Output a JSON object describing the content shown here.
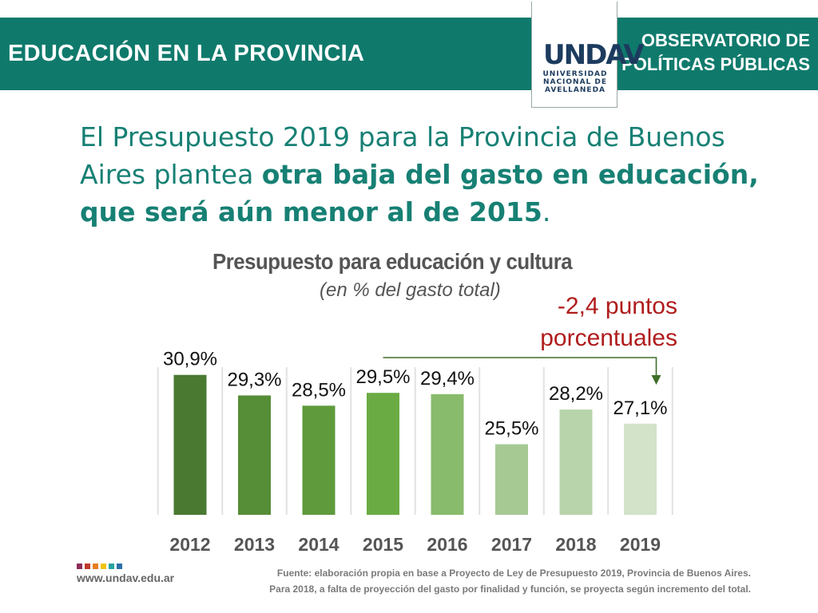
{
  "header": {
    "section_title": "EDUCACIÓN EN LA PROVINCIA",
    "org_line1": "OBSERVATORIO DE",
    "org_line2": "POLÍTICAS PÚBLICAS",
    "logo_mark": "UNDAV",
    "logo_sub1": "UNIVERSIDAD",
    "logo_sub2": "NACIONAL DE",
    "logo_sub3": "AVELLANEDA",
    "band_color": "#0f7a6c"
  },
  "headline": {
    "part1": "El Presupuesto 2019 para la Provincia de Buenos Aires plantea ",
    "bold": "otra baja del gasto en educación, que será aún menor al de 2015",
    "end": "."
  },
  "chart_data": {
    "type": "bar",
    "title": "Presupuesto para educación y cultura",
    "subtitle": "(en % del gasto total)",
    "categories": [
      "2012",
      "2013",
      "2014",
      "2015",
      "2016",
      "2017",
      "2018",
      "2019"
    ],
    "values": [
      30.9,
      29.3,
      28.5,
      29.5,
      29.4,
      25.5,
      28.2,
      27.1
    ],
    "value_labels": [
      "30,9%",
      "29,3%",
      "28,5%",
      "29,5%",
      "29,4%",
      "25,5%",
      "28,2%",
      "27,1%"
    ],
    "bar_colors": [
      "#4a7a32",
      "#568d37",
      "#5f9a3d",
      "#6aab44",
      "#88bb6c",
      "#a6c994",
      "#b8d4ab",
      "#d2e3c9"
    ],
    "ylim": [
      20,
      32
    ],
    "annotation": {
      "line1": "-2,4 puntos",
      "line2": "porcentuales",
      "from": "2015",
      "to": "2019",
      "color": "#b01c1c",
      "arrow_color": "#3f6e2a"
    }
  },
  "footer": {
    "url": "www.undav.edu.ar",
    "source_line1": "Fuente: elaboración propia en base a Proyecto de Ley de Presupuesto 2019, Provincia de Buenos Aires.",
    "source_line2": "Para 2018, a falta de proyección del gasto por finalidad y función, se proyecta según incremento del total.",
    "dot_colors": [
      "#8e2d5a",
      "#c0392b",
      "#e67e22",
      "#f1c40f",
      "#27a3a0",
      "#2c6fa8"
    ]
  }
}
